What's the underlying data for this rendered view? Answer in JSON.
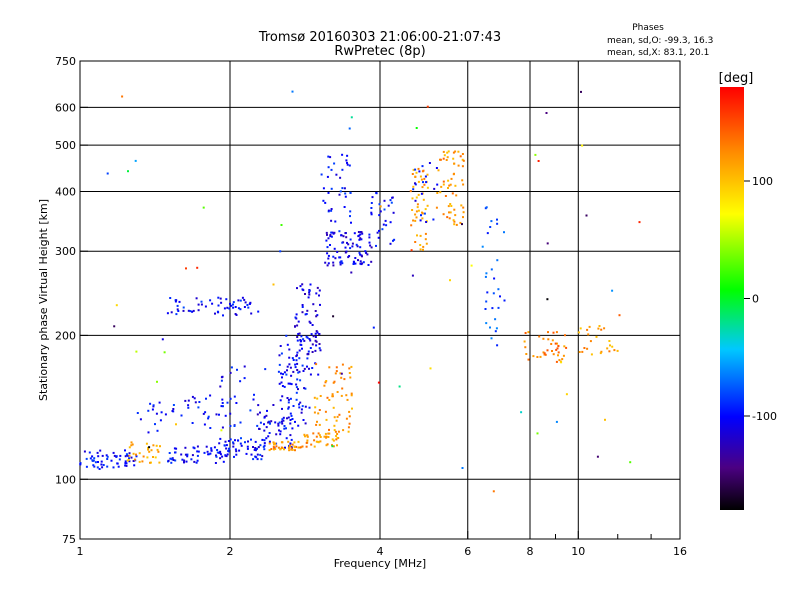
{
  "header": {
    "title": "Tromsø 20160303 21:06:00-21:07:43",
    "subtitle": "RwPretec (8p)"
  },
  "phase_info": {
    "label": "Phases",
    "line_o": "mean, sd,O: -99.3, 16.3",
    "line_x": "mean, sd,X:  83.1, 20.1"
  },
  "colorbar": {
    "unit_label": "[deg]",
    "range": [
      -180,
      180
    ],
    "ticks": [
      {
        "v": 100,
        "label": "100"
      },
      {
        "v": 0,
        "label": "0"
      },
      {
        "v": -100,
        "label": "-100"
      }
    ]
  },
  "chart_data": {
    "type": "scatter",
    "title": "Tromsø 20160303 21:06:00-21:07:43",
    "subtitle": "RwPretec (8p)",
    "xlabel": "Frequency [MHz]",
    "ylabel": "Stationary phase Virtual Height [km]",
    "xscale": "log",
    "yscale": "log",
    "xlim": [
      1,
      16
    ],
    "ylim": [
      75,
      750
    ],
    "grid": true,
    "xticks": [
      1,
      2,
      4,
      6,
      8,
      10,
      16
    ],
    "xtick_labels": [
      "1",
      "2",
      "4",
      "6",
      "8",
      "10",
      "16"
    ],
    "xgrid": [
      2,
      4,
      6,
      8,
      10
    ],
    "yticks": [
      75,
      100,
      200,
      300,
      400,
      500,
      600,
      750
    ],
    "ytick_labels": [
      "75",
      "100",
      "200",
      "300",
      "400",
      "500",
      "600",
      "750"
    ],
    "ygrid": [
      100,
      200,
      300,
      400,
      500,
      600
    ],
    "color_encoding": "phase_deg",
    "clusters": [
      {
        "f_range": [
          1.0,
          1.3
        ],
        "h_range": [
          105,
          115
        ],
        "phase": -100,
        "n": 60
      },
      {
        "f_range": [
          1.2,
          1.45
        ],
        "h_range": [
          108,
          120
        ],
        "phase": 110,
        "n": 30
      },
      {
        "f_range": [
          1.5,
          2.0
        ],
        "h_range": [
          108,
          118
        ],
        "phase": -100,
        "n": 60
      },
      {
        "f_range": [
          1.9,
          2.35
        ],
        "h_range": [
          110,
          122
        ],
        "phase": -100,
        "n": 50
      },
      {
        "f_range": [
          2.25,
          2.7
        ],
        "h_range": [
          115,
          140
        ],
        "phase": -105,
        "n": 50
      },
      {
        "f_range": [
          2.5,
          2.9
        ],
        "h_range": [
          130,
          200
        ],
        "phase": -100,
        "n": 70
      },
      {
        "f_range": [
          2.7,
          3.05
        ],
        "h_range": [
          165,
          260
        ],
        "phase": -110,
        "n": 80
      },
      {
        "f_range": [
          1.9,
          2.8
        ],
        "h_range": [
          128,
          175
        ],
        "phase": -100,
        "n": 40
      },
      {
        "f_range": [
          1.6,
          2.1
        ],
        "h_range": [
          128,
          150
        ],
        "phase": -100,
        "n": 30
      },
      {
        "f_range": [
          1.3,
          1.6
        ],
        "h_range": [
          125,
          145
        ],
        "phase": -100,
        "n": 20
      },
      {
        "f_range": [
          2.4,
          2.8
        ],
        "h_range": [
          115,
          120
        ],
        "phase": 120,
        "n": 40
      },
      {
        "f_range": [
          2.8,
          3.3
        ],
        "h_range": [
          117,
          125
        ],
        "phase": 120,
        "n": 40
      },
      {
        "f_range": [
          2.95,
          3.55
        ],
        "h_range": [
          125,
          175
        ],
        "phase": 120,
        "n": 60
      },
      {
        "f_range": [
          1.5,
          2.3
        ],
        "h_range": [
          220,
          240
        ],
        "phase": -100,
        "n": 60
      },
      {
        "f_range": [
          3.1,
          3.85
        ],
        "h_range": [
          280,
          330
        ],
        "phase": -110,
        "n": 90
      },
      {
        "f_range": [
          3.05,
          3.5
        ],
        "h_range": [
          330,
          480
        ],
        "phase": -100,
        "n": 40
      },
      {
        "f_range": [
          3.8,
          4.3
        ],
        "h_range": [
          300,
          400
        ],
        "phase": -95,
        "n": 30
      },
      {
        "f_range": [
          4.6,
          5.0
        ],
        "h_range": [
          300,
          450
        ],
        "phase": 115,
        "n": 50
      },
      {
        "f_range": [
          5.2,
          5.9
        ],
        "h_range": [
          340,
          490
        ],
        "phase": 120,
        "n": 60
      },
      {
        "f_range": [
          4.6,
          5.3
        ],
        "h_range": [
          340,
          460
        ],
        "phase": -100,
        "n": 20
      },
      {
        "f_range": [
          7.8,
          9.5
        ],
        "h_range": [
          175,
          205
        ],
        "phase": 130,
        "n": 40
      },
      {
        "f_range": [
          10.0,
          12.0
        ],
        "h_range": [
          180,
          210
        ],
        "phase": 115,
        "n": 25
      },
      {
        "f_range": [
          6.4,
          7.2
        ],
        "h_range": [
          190,
          380
        ],
        "phase": -80,
        "n": 30
      },
      {
        "f_range": [
          1.05,
          13.5
        ],
        "h_range": [
          90,
          650
        ],
        "phase": 0,
        "n": 60
      }
    ]
  }
}
